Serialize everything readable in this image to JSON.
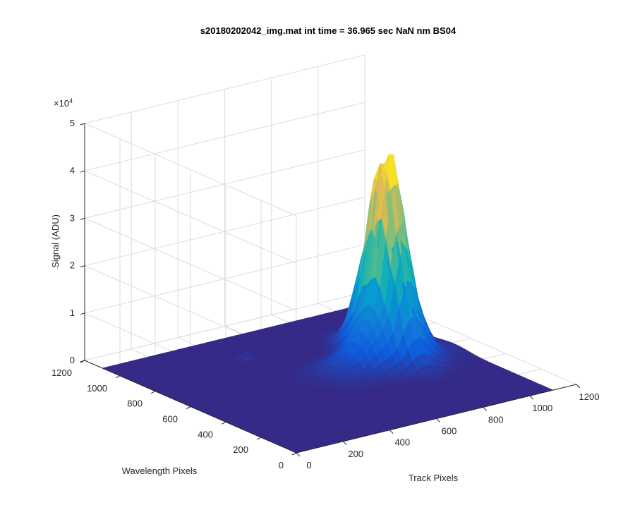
{
  "chart_data": {
    "type": "surface",
    "title": "s20180202042_img.mat int time = 36.965 sec  NaN nm BS04",
    "xlabel": "Track Pixels",
    "ylabel": "Wavelength Pixels",
    "zlabel": "Signal (ADU)",
    "xlim": [
      0,
      1200
    ],
    "ylim": [
      0,
      1200
    ],
    "zlim": [
      0,
      50000
    ],
    "x_ticks": [
      "0",
      "200",
      "400",
      "600",
      "800",
      "1000",
      "1200"
    ],
    "y_ticks": [
      "0",
      "200",
      "400",
      "600",
      "800",
      "1000",
      "1200"
    ],
    "z_ticks": [
      "0",
      "1",
      "2",
      "3",
      "4",
      "5"
    ],
    "z_exponent_label": "×10",
    "z_exponent": "4",
    "grid": true,
    "colormap": "parula",
    "floor_color": "#352a87",
    "peak_color": "#f9c929",
    "surface": {
      "data_extent_x": [
        0,
        1100
      ],
      "data_extent_y": [
        0,
        1100
      ],
      "baseline_signal": 0,
      "features": [
        {
          "name": "main peak",
          "x": 850,
          "y": 620,
          "peak_signal": 39000
        },
        {
          "name": "shoulder",
          "x": 800,
          "y": 560,
          "peak_signal": 11000
        },
        {
          "name": "small bump",
          "x": 450,
          "y": 880,
          "peak_signal": 2000
        }
      ]
    }
  }
}
